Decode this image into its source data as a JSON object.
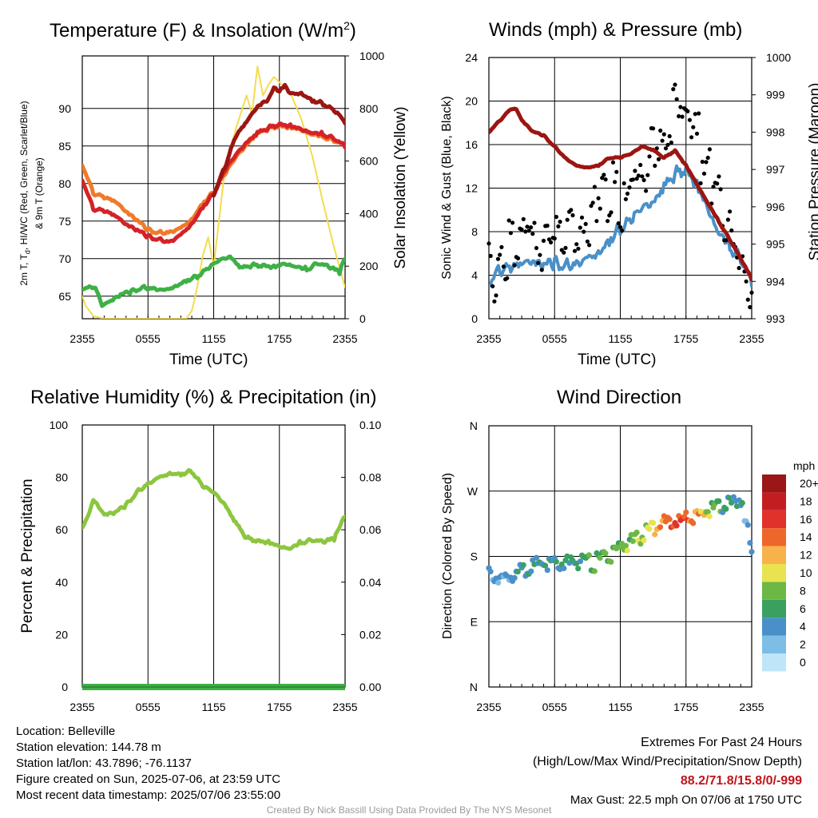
{
  "panels": {
    "temp": {
      "title_main": "Temperature (F) & Insolation (W/m",
      "title_sup": "2",
      "title_end": ")",
      "xlabel": "Time (UTC)",
      "ylabel_line1": "2m T, T",
      "ylabel_sub": "d",
      "ylabel_line1b": ", HI/WC (Red, Green, Scarlet/Blue)",
      "ylabel_line2": "& 9m T (Orange)",
      "ylabel_right": "Solar Insolation (Yellow)"
    },
    "wind": {
      "title": "Winds (mph) & Pressure (mb)",
      "xlabel": "Time (UTC)",
      "ylabel_left": "Sonic Wind & Gust (Blue, Black)",
      "ylabel_right": "Station Pressure (Maroon)"
    },
    "rh": {
      "title": "Relative Humidity (%) & Precipitation (in)",
      "ylabel_left": "Percent & Precipitation"
    },
    "dir": {
      "title": "Wind Direction",
      "ylabel_left": "Direction (Colored By Speed)",
      "legend_title": "mph"
    }
  },
  "info": {
    "location": "Location: Belleville",
    "elevation": "Station elevation: 144.78 m",
    "latlon": "Station lat/lon: 43.7896; -76.1137",
    "created": "Figure created on Sun, 2025-07-06, at 23:59 UTC",
    "recent": "Most recent data timestamp: 2025/07/06 23:55:00"
  },
  "extremes": {
    "heading": "Extremes For Past 24 Hours",
    "subheading": "(High/Low/Max Wind/Precipitation/Snow Depth)",
    "values": "88.2/71.8/15.8/0/-999",
    "max_gust": "Max Gust: 22.5 mph On 07/06 at 1750 UTC"
  },
  "credit": "Created By Nick Bassill Using Data Provided By The NYS Mesonet",
  "chart_data": [
    {
      "type": "line",
      "title": "Temperature (F) & Insolation (W/m2)",
      "xlabel": "Time (UTC)",
      "ylabel": "2m T, Td, HI/WC (Red, Green, Scarlet/Blue) & 9m T (Orange)",
      "ylabel_right": "Solar Insolation (Yellow)",
      "x_ticks": [
        "2355",
        "0555",
        "1155",
        "1755",
        "2355"
      ],
      "x_range_hours": [
        0,
        24
      ],
      "ylim": [
        62,
        97
      ],
      "y_ticks": [
        65,
        70,
        75,
        80,
        85,
        90
      ],
      "ylim_right": [
        0,
        1000
      ],
      "y_ticks_right": [
        0,
        200,
        400,
        600,
        800,
        1000
      ],
      "grid": true,
      "series": [
        {
          "name": "2m T",
          "color": "#d42228",
          "axis": "left",
          "x": [
            0,
            1,
            2,
            3,
            4,
            5,
            6,
            7,
            8,
            9,
            10,
            11,
            12,
            13,
            14,
            15,
            16,
            17,
            18,
            19,
            20,
            21,
            22,
            23,
            24
          ],
          "y": [
            80.5,
            76.5,
            76.1,
            75.5,
            74.3,
            73.6,
            72.8,
            72.4,
            72.2,
            73.2,
            74.6,
            76.8,
            78.5,
            81.5,
            83.5,
            85.2,
            86.5,
            87.3,
            87.8,
            87.6,
            87.2,
            86.8,
            86.5,
            85.8,
            84.8
          ]
        },
        {
          "name": "9m T",
          "color": "#f07a2a",
          "axis": "left",
          "x": [
            0,
            1,
            2,
            3,
            4,
            5,
            6,
            7,
            8,
            9,
            10,
            11,
            12,
            13,
            14,
            15,
            16,
            17,
            18,
            19,
            20,
            21,
            22,
            23,
            24
          ],
          "y": [
            82.5,
            78.6,
            77.9,
            77.4,
            76.0,
            74.9,
            73.7,
            73.3,
            73.5,
            74.1,
            75.2,
            77.3,
            78.7,
            81.0,
            83.2,
            84.9,
            86.4,
            87.2,
            87.6,
            87.4,
            87.1,
            86.6,
            86.2,
            85.5,
            85.0
          ]
        },
        {
          "name": "HI/WC",
          "color": "#9b1612",
          "axis": "left",
          "x": [
            12,
            13,
            14,
            15,
            16,
            17,
            17.5,
            18,
            18.5,
            19,
            20,
            21,
            22,
            23,
            24
          ],
          "y": [
            78.5,
            82.0,
            86.0,
            88.0,
            90.0,
            91.0,
            92.5,
            92.0,
            93.0,
            92.0,
            92.0,
            91.0,
            90.5,
            89.5,
            88.0
          ]
        },
        {
          "name": "Td",
          "color": "#3eb046",
          "axis": "left",
          "x": [
            0,
            0.8,
            1.2,
            1.8,
            2.5,
            3.5,
            4.5,
            5.5,
            6.5,
            7.5,
            8.5,
            9.5,
            10.5,
            11.5,
            12.5,
            13.5,
            14.5,
            15.5,
            16.5,
            17.5,
            18.5,
            19.5,
            20.5,
            21.5,
            22.5,
            23.5,
            24
          ],
          "y": [
            66.0,
            66.2,
            66.0,
            63.5,
            64.0,
            65.0,
            65.5,
            66.0,
            66.0,
            65.8,
            66.3,
            67.0,
            67.5,
            68.5,
            69.5,
            70.0,
            68.5,
            69.0,
            69.0,
            68.8,
            69.3,
            69.0,
            68.5,
            69.2,
            68.8,
            68.0,
            70.0
          ]
        },
        {
          "name": "Solar Insolation",
          "color": "#f3dc50",
          "axis": "right",
          "x": [
            0,
            0.3,
            1,
            2,
            3,
            4,
            5,
            6,
            7,
            8,
            9,
            9.5,
            10,
            10.5,
            11,
            11.5,
            12,
            12.5,
            13,
            14,
            15,
            15.5,
            16,
            16.5,
            17,
            17.5,
            18,
            18.5,
            19,
            20,
            21,
            22,
            23,
            24
          ],
          "y": [
            85,
            50,
            10,
            0,
            0,
            0,
            0,
            0,
            0,
            0,
            0,
            0,
            30,
            120,
            240,
            310,
            200,
            380,
            560,
            720,
            850,
            780,
            960,
            850,
            890,
            920,
            900,
            880,
            860,
            760,
            620,
            440,
            270,
            120
          ]
        }
      ]
    },
    {
      "type": "line",
      "title": "Winds (mph) & Pressure (mb)",
      "xlabel": "Time (UTC)",
      "ylabel": "Sonic Wind & Gust (Blue, Black)",
      "ylabel_right": "Station Pressure (Maroon)",
      "x_ticks": [
        "2355",
        "0555",
        "1155",
        "1755",
        "2355"
      ],
      "x_range_hours": [
        0,
        24
      ],
      "ylim": [
        0,
        24
      ],
      "y_ticks": [
        0,
        4,
        8,
        12,
        16,
        20,
        24
      ],
      "ylim_right": [
        993,
        1000
      ],
      "y_ticks_right": [
        993,
        994,
        995,
        996,
        997,
        998,
        999,
        1000
      ],
      "grid": true,
      "series": [
        {
          "name": "Sonic Wind",
          "color": "#4a90c8",
          "axis": "left",
          "x": [
            0,
            1,
            2,
            3,
            4,
            5,
            6,
            7,
            8,
            9,
            10,
            11,
            12,
            13,
            14,
            15,
            16,
            17,
            18,
            19,
            20,
            21,
            22,
            23,
            24
          ],
          "y": [
            3.2,
            4.2,
            4.0,
            4.5,
            4.6,
            4.4,
            4.8,
            4.5,
            5.0,
            5.6,
            6.0,
            7.0,
            8.0,
            8.5,
            9.5,
            10.0,
            11.5,
            13.0,
            13.5,
            12.0,
            10.0,
            8.0,
            6.5,
            5.0,
            3.0
          ]
        },
        {
          "name": "Gust",
          "color": "#000000",
          "axis": "left",
          "style": "dots",
          "x": [
            0,
            0.5,
            1,
            1.5,
            2,
            2.5,
            3,
            3.5,
            4,
            4.5,
            5,
            5.5,
            6,
            6.5,
            7,
            7.5,
            8,
            8.5,
            9,
            9.5,
            10,
            10.5,
            11,
            11.5,
            12,
            12.5,
            13,
            13.5,
            14,
            14.5,
            15,
            15.5,
            16,
            16.5,
            17,
            17.5,
            18,
            18.5,
            19,
            19.5,
            20,
            20.5,
            21,
            21.5,
            22,
            22.5,
            23,
            23.5,
            24
          ],
          "y": [
            6.0,
            5.0,
            6.5,
            7.0,
            8.0,
            8.5,
            9.0,
            10.5,
            8.0,
            8.5,
            7.5,
            8.5,
            9.0,
            8.0,
            8.0,
            9.0,
            9.5,
            8.5,
            10.0,
            11.5,
            12.5,
            13.0,
            12.0,
            13.5,
            11.5,
            12.0,
            14.0,
            13.0,
            15.0,
            14.0,
            16.5,
            18.0,
            17.0,
            19.5,
            20.5,
            21.0,
            19.5,
            20.0,
            18.0,
            16.0,
            15.0,
            14.0,
            12.0,
            10.0,
            9.0,
            8.0,
            6.5,
            5.0,
            4.5
          ]
        },
        {
          "name": "Station Pressure",
          "color": "#9b1612",
          "axis": "right",
          "x": [
            0,
            1,
            2,
            2.5,
            3,
            4,
            5,
            6,
            7,
            8,
            9,
            10,
            11,
            12,
            13,
            14,
            15,
            16,
            17,
            18,
            19,
            20,
            21,
            22,
            23,
            24
          ],
          "y": [
            998.0,
            998.3,
            998.6,
            998.6,
            998.3,
            998.0,
            997.9,
            997.6,
            997.3,
            997.1,
            997.05,
            997.1,
            997.3,
            997.3,
            997.4,
            997.6,
            997.5,
            997.3,
            997.5,
            997.1,
            996.6,
            996.1,
            995.6,
            995.1,
            994.6,
            994.05
          ]
        }
      ]
    },
    {
      "type": "line",
      "title": "Relative Humidity (%) & Precipitation (in)",
      "ylabel": "Percent & Precipitation",
      "x_ticks": [
        "2355",
        "0555",
        "1155",
        "1755",
        "2355"
      ],
      "x_range_hours": [
        0,
        24
      ],
      "ylim": [
        0,
        100
      ],
      "y_ticks": [
        0,
        20,
        40,
        60,
        80,
        100
      ],
      "ylim_right": [
        0,
        0.1
      ],
      "y_ticks_right": [
        "0.00",
        "0.02",
        "0.04",
        "0.06",
        "0.08",
        "0.10"
      ],
      "grid": true,
      "series": [
        {
          "name": "Relative Humidity",
          "color": "#8cc63f",
          "axis": "left",
          "x": [
            0,
            0.5,
            1,
            1.5,
            2,
            3,
            4,
            5,
            6,
            7,
            8,
            9,
            10,
            11,
            12,
            13,
            14,
            15,
            16,
            17,
            18,
            19,
            20,
            21,
            22,
            23,
            24
          ],
          "y": [
            61,
            65,
            71,
            68,
            65,
            66,
            69,
            74,
            77.5,
            80,
            81.5,
            81,
            82,
            76,
            73.5,
            69,
            62,
            56.5,
            55.5,
            55,
            53.5,
            53,
            55,
            55.5,
            55,
            56,
            65
          ]
        },
        {
          "name": "Precipitation",
          "color": "#3eb046",
          "axis": "right",
          "x": [
            0,
            24
          ],
          "y": [
            0,
            0
          ]
        }
      ]
    },
    {
      "type": "scatter",
      "title": "Wind Direction",
      "ylabel": "Direction (Colored By Speed)",
      "x_ticks": [
        "2355",
        "0555",
        "1155",
        "1755",
        "2355"
      ],
      "x_range_hours": [
        0,
        24
      ],
      "y_ticks": [
        "N",
        "E",
        "S",
        "W",
        "N"
      ],
      "ylim_degrees": [
        0,
        360
      ],
      "legend_title": "mph",
      "legend_labels": [
        "0",
        "2",
        "4",
        "6",
        "8",
        "10",
        "12",
        "14",
        "16",
        "18",
        "20+"
      ],
      "legend_colors": [
        "#bfe6f8",
        "#7dbde6",
        "#4a90c8",
        "#3aa060",
        "#6db845",
        "#e9e34f",
        "#f7b24a",
        "#ee672a",
        "#e0312a",
        "#c21e22",
        "#9b1617"
      ],
      "grid": true,
      "series": [
        {
          "name": "Wind Direction",
          "x": [
            0,
            0.5,
            1,
            1.5,
            2,
            2.5,
            3,
            3.5,
            4,
            4.5,
            5,
            5.5,
            6,
            6.5,
            7,
            7.5,
            8,
            8.5,
            9,
            9.5,
            10,
            10.5,
            11,
            11.5,
            12,
            12.5,
            13,
            13.5,
            14,
            14.5,
            15,
            15.5,
            16,
            16.5,
            17,
            17.5,
            18,
            18.5,
            19,
            19.5,
            20,
            20.5,
            21,
            21.5,
            22,
            22.5,
            23,
            23.5,
            24
          ],
          "y": [
            160,
            158,
            150,
            155,
            160,
            162,
            165,
            168,
            172,
            175,
            178,
            175,
            177,
            175,
            176,
            174,
            178,
            180,
            178,
            172,
            180,
            182,
            186,
            190,
            195,
            200,
            205,
            208,
            212,
            218,
            225,
            228,
            232,
            235,
            236,
            234,
            238,
            240,
            242,
            245,
            248,
            250,
            252,
            255,
            258,
            262,
            265,
            228,
            200
          ],
          "speed": [
            3,
            3,
            3,
            3,
            3,
            4,
            4,
            4,
            4,
            4,
            4,
            4,
            4,
            4,
            5,
            5,
            5,
            5,
            6,
            6,
            6,
            7,
            7,
            7,
            7,
            8,
            7,
            8,
            8,
            9,
            10,
            12,
            13,
            14,
            15,
            15,
            14,
            13,
            12,
            10,
            8,
            7,
            6,
            5,
            5,
            4,
            4,
            2,
            4
          ]
        }
      ]
    }
  ]
}
